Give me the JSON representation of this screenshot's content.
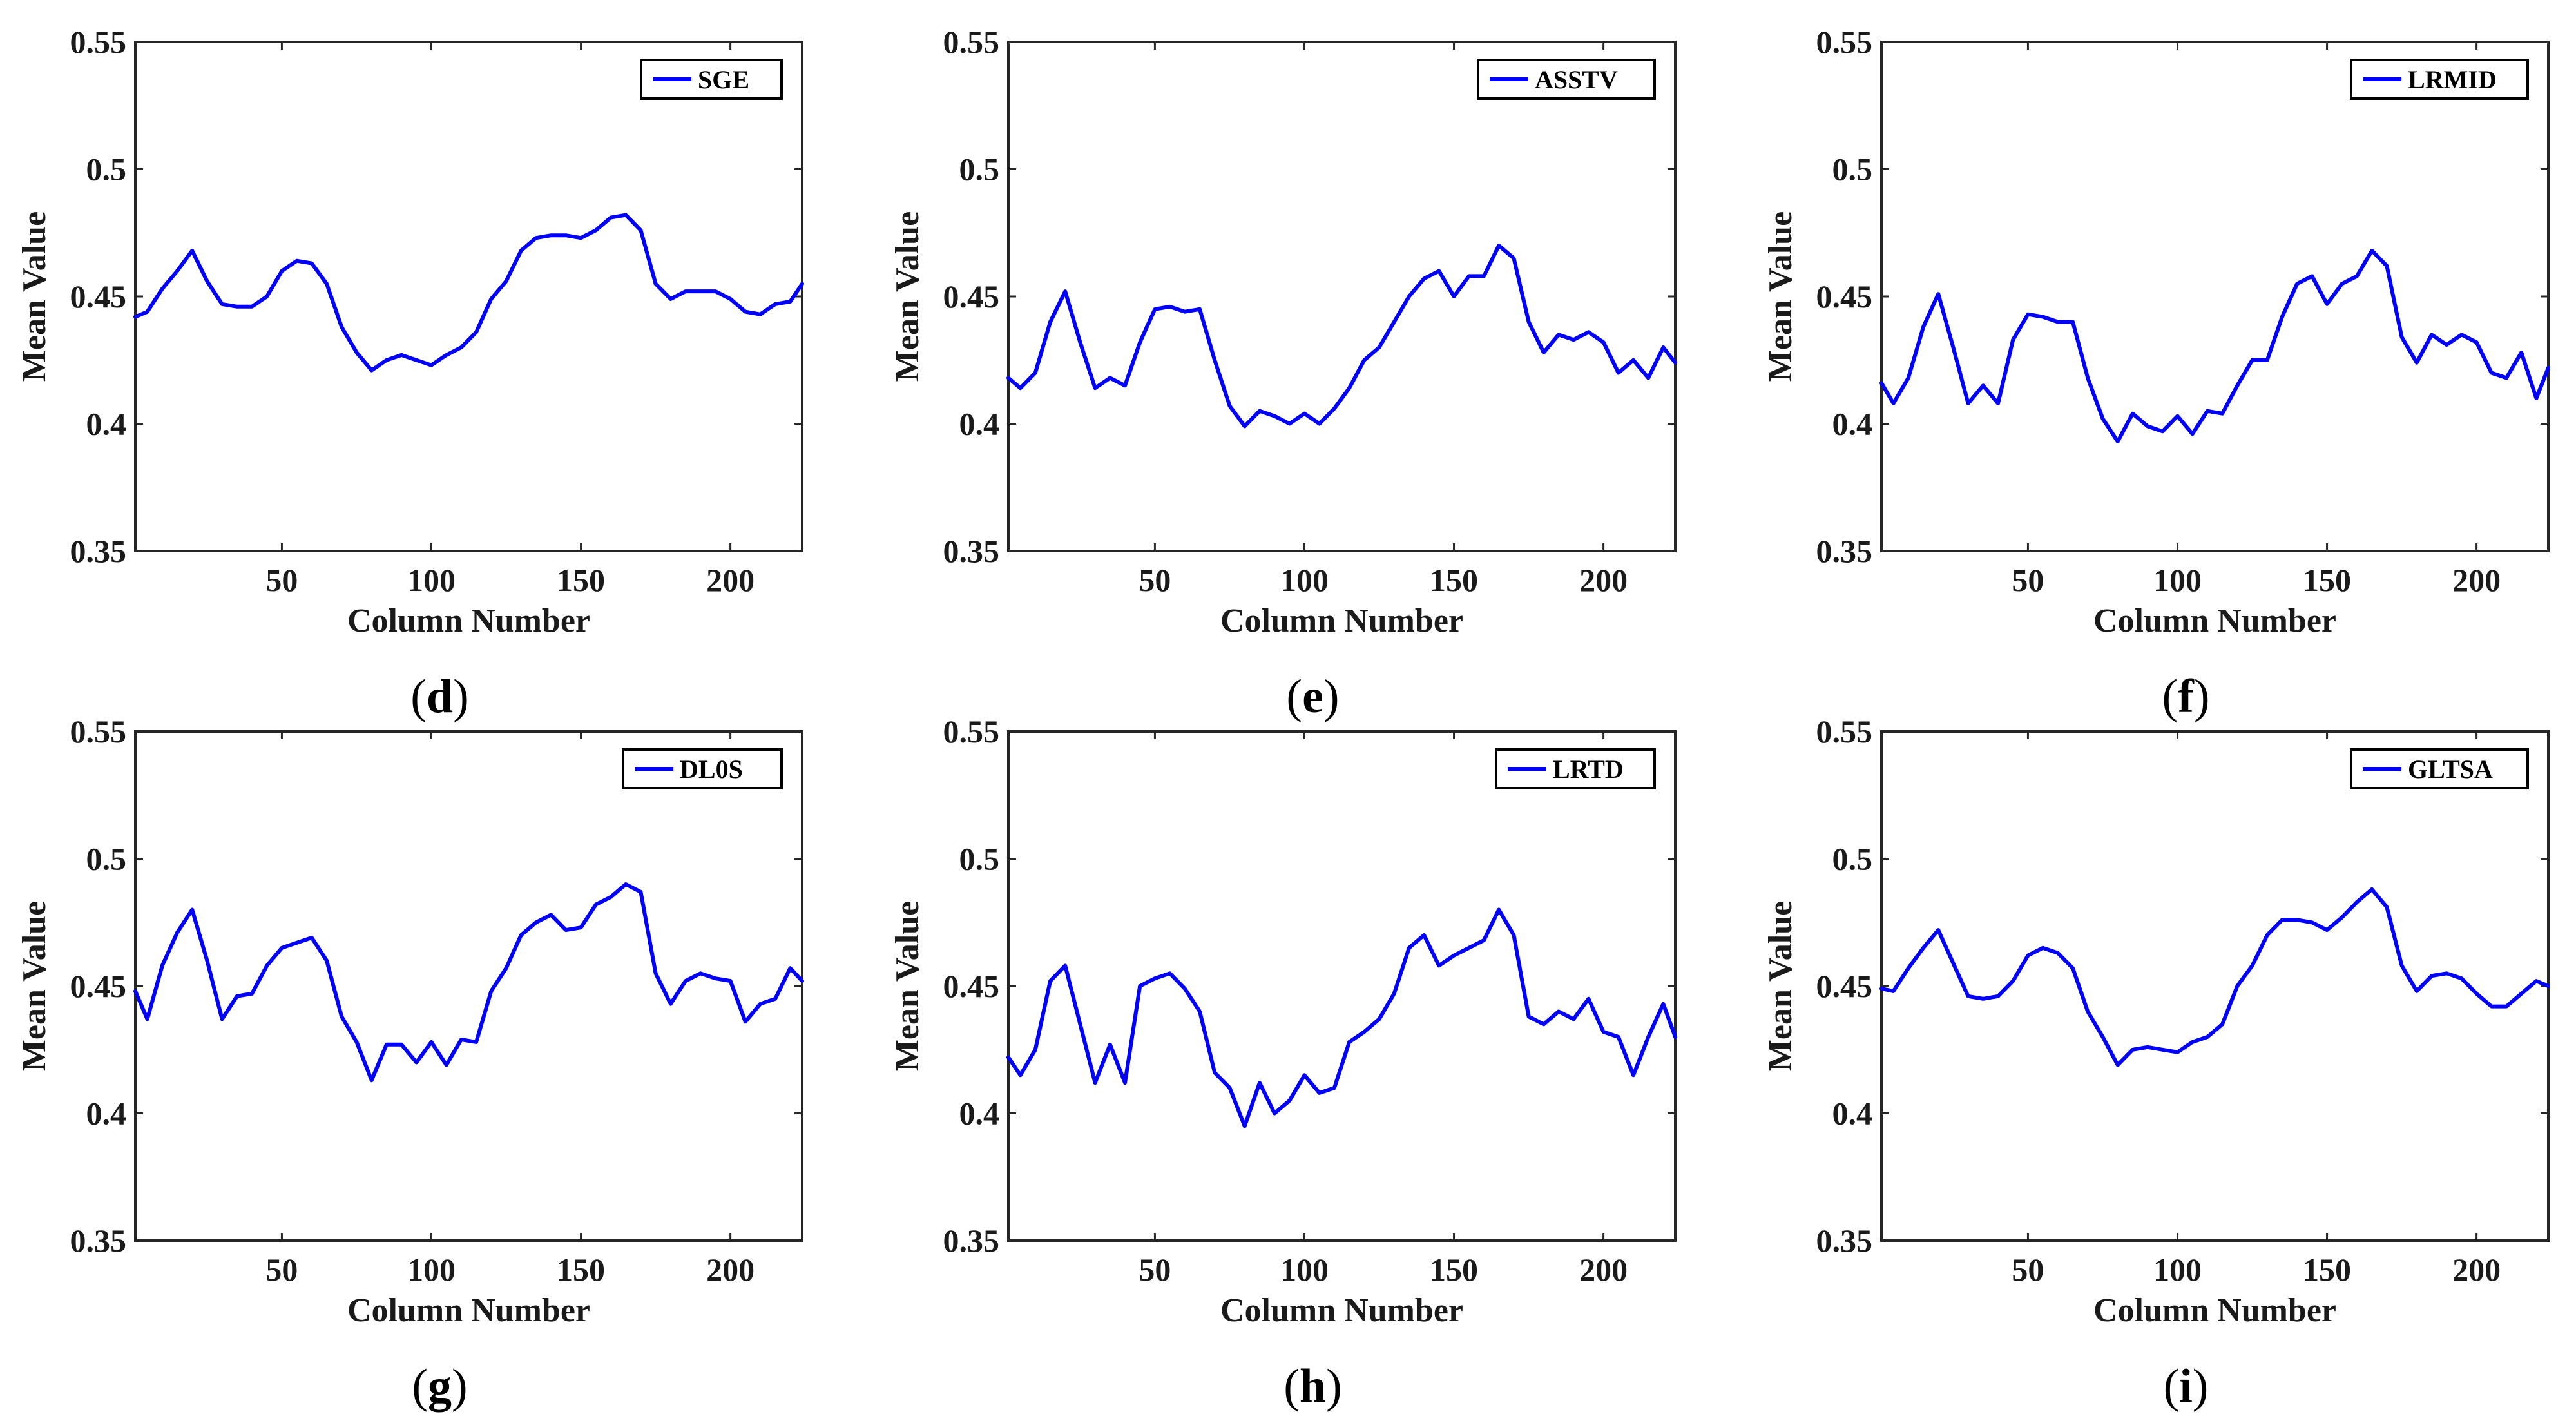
{
  "chart_data": [
    {
      "type": "line",
      "panel": "d",
      "legend": "SGE",
      "xlabel": "Column Number",
      "ylabel": "Mean Value",
      "xlim": [
        1,
        224
      ],
      "ylim": [
        0.35,
        0.55
      ],
      "xticks": [
        "50",
        "100",
        "150",
        "200"
      ],
      "yticks": [
        "0.35",
        "0.4",
        "0.45",
        "0.5",
        "0.55"
      ],
      "color": "#0000ff",
      "x": [
        1,
        5,
        10,
        15,
        20,
        25,
        30,
        35,
        40,
        45,
        50,
        55,
        60,
        65,
        70,
        75,
        80,
        85,
        90,
        95,
        100,
        105,
        110,
        115,
        120,
        125,
        130,
        135,
        140,
        145,
        150,
        155,
        160,
        165,
        170,
        175,
        180,
        185,
        190,
        195,
        200,
        205,
        210,
        215,
        220,
        224
      ],
      "values": [
        0.442,
        0.444,
        0.453,
        0.46,
        0.468,
        0.456,
        0.447,
        0.446,
        0.446,
        0.45,
        0.46,
        0.464,
        0.463,
        0.455,
        0.438,
        0.428,
        0.421,
        0.425,
        0.427,
        0.425,
        0.423,
        0.427,
        0.43,
        0.436,
        0.449,
        0.456,
        0.468,
        0.473,
        0.474,
        0.474,
        0.473,
        0.476,
        0.481,
        0.482,
        0.476,
        0.455,
        0.449,
        0.452,
        0.452,
        0.452,
        0.449,
        0.444,
        0.443,
        0.447,
        0.448,
        0.455
      ]
    },
    {
      "type": "line",
      "panel": "e",
      "legend": "ASSTV",
      "xlabel": "Column Number",
      "ylabel": "Mean Value",
      "xlim": [
        1,
        224
      ],
      "ylim": [
        0.35,
        0.55
      ],
      "xticks": [
        "50",
        "100",
        "150",
        "200"
      ],
      "yticks": [
        "0.35",
        "0.4",
        "0.45",
        "0.5",
        "0.55"
      ],
      "color": "#0000ff",
      "x": [
        1,
        5,
        10,
        15,
        20,
        25,
        30,
        35,
        40,
        45,
        50,
        55,
        60,
        65,
        70,
        75,
        80,
        85,
        90,
        95,
        100,
        105,
        110,
        115,
        120,
        125,
        130,
        135,
        140,
        145,
        150,
        155,
        160,
        165,
        170,
        175,
        180,
        185,
        190,
        195,
        200,
        205,
        210,
        215,
        220,
        224
      ],
      "values": [
        0.418,
        0.414,
        0.42,
        0.44,
        0.452,
        0.432,
        0.414,
        0.418,
        0.415,
        0.432,
        0.445,
        0.446,
        0.444,
        0.445,
        0.425,
        0.407,
        0.399,
        0.405,
        0.403,
        0.4,
        0.404,
        0.4,
        0.406,
        0.414,
        0.425,
        0.43,
        0.44,
        0.45,
        0.457,
        0.46,
        0.45,
        0.458,
        0.458,
        0.47,
        0.465,
        0.44,
        0.428,
        0.435,
        0.433,
        0.436,
        0.432,
        0.42,
        0.425,
        0.418,
        0.43,
        0.424
      ]
    },
    {
      "type": "line",
      "panel": "f",
      "legend": "LRMID",
      "xlabel": "Column Number",
      "ylabel": "Mean Value",
      "xlim": [
        1,
        224
      ],
      "ylim": [
        0.35,
        0.55
      ],
      "xticks": [
        "50",
        "100",
        "150",
        "200"
      ],
      "yticks": [
        "0.35",
        "0.4",
        "0.45",
        "0.5",
        "0.55"
      ],
      "color": "#0000ff",
      "x": [
        1,
        5,
        10,
        15,
        20,
        25,
        30,
        35,
        40,
        45,
        50,
        55,
        60,
        65,
        70,
        75,
        80,
        85,
        90,
        95,
        100,
        105,
        110,
        115,
        120,
        125,
        130,
        135,
        140,
        145,
        150,
        155,
        160,
        165,
        170,
        175,
        180,
        185,
        190,
        195,
        200,
        205,
        210,
        215,
        220,
        224
      ],
      "values": [
        0.416,
        0.408,
        0.418,
        0.438,
        0.451,
        0.43,
        0.408,
        0.415,
        0.408,
        0.433,
        0.443,
        0.442,
        0.44,
        0.44,
        0.418,
        0.402,
        0.393,
        0.404,
        0.399,
        0.397,
        0.403,
        0.396,
        0.405,
        0.404,
        0.415,
        0.425,
        0.425,
        0.442,
        0.455,
        0.458,
        0.447,
        0.455,
        0.458,
        0.468,
        0.462,
        0.434,
        0.424,
        0.435,
        0.431,
        0.435,
        0.432,
        0.42,
        0.418,
        0.428,
        0.41,
        0.422
      ]
    },
    {
      "type": "line",
      "panel": "g",
      "legend": "DL0S",
      "xlabel": "Column Number",
      "ylabel": "Mean Value",
      "xlim": [
        1,
        224
      ],
      "ylim": [
        0.35,
        0.55
      ],
      "xticks": [
        "50",
        "100",
        "150",
        "200"
      ],
      "yticks": [
        "0.35",
        "0.4",
        "0.45",
        "0.5",
        "0.55"
      ],
      "color": "#0000ff",
      "x": [
        1,
        5,
        10,
        15,
        20,
        25,
        30,
        35,
        40,
        45,
        50,
        55,
        60,
        65,
        70,
        75,
        80,
        85,
        90,
        95,
        100,
        105,
        110,
        115,
        120,
        125,
        130,
        135,
        140,
        145,
        150,
        155,
        160,
        165,
        170,
        175,
        180,
        185,
        190,
        195,
        200,
        205,
        210,
        215,
        220,
        224
      ],
      "values": [
        0.448,
        0.437,
        0.458,
        0.471,
        0.48,
        0.46,
        0.437,
        0.446,
        0.447,
        0.458,
        0.465,
        0.467,
        0.469,
        0.46,
        0.438,
        0.428,
        0.413,
        0.427,
        0.427,
        0.42,
        0.428,
        0.419,
        0.429,
        0.428,
        0.448,
        0.457,
        0.47,
        0.475,
        0.478,
        0.472,
        0.473,
        0.482,
        0.485,
        0.49,
        0.487,
        0.455,
        0.443,
        0.452,
        0.455,
        0.453,
        0.452,
        0.436,
        0.443,
        0.445,
        0.457,
        0.452
      ]
    },
    {
      "type": "line",
      "panel": "h",
      "legend": "LRTD",
      "xlabel": "Column Number",
      "ylabel": "Mean Value",
      "xlim": [
        1,
        224
      ],
      "ylim": [
        0.35,
        0.55
      ],
      "xticks": [
        "50",
        "100",
        "150",
        "200"
      ],
      "yticks": [
        "0.35",
        "0.4",
        "0.45",
        "0.5",
        "0.55"
      ],
      "color": "#0000ff",
      "x": [
        1,
        5,
        10,
        15,
        20,
        25,
        30,
        35,
        40,
        45,
        50,
        55,
        60,
        65,
        70,
        75,
        80,
        85,
        90,
        95,
        100,
        105,
        110,
        115,
        120,
        125,
        130,
        135,
        140,
        145,
        150,
        155,
        160,
        165,
        170,
        175,
        180,
        185,
        190,
        195,
        200,
        205,
        210,
        215,
        220,
        224
      ],
      "values": [
        0.422,
        0.415,
        0.425,
        0.452,
        0.458,
        0.435,
        0.412,
        0.427,
        0.412,
        0.45,
        0.453,
        0.455,
        0.449,
        0.44,
        0.416,
        0.41,
        0.395,
        0.412,
        0.4,
        0.405,
        0.415,
        0.408,
        0.41,
        0.428,
        0.432,
        0.437,
        0.447,
        0.465,
        0.47,
        0.458,
        0.462,
        0.465,
        0.468,
        0.48,
        0.47,
        0.438,
        0.435,
        0.44,
        0.437,
        0.445,
        0.432,
        0.43,
        0.415,
        0.43,
        0.443,
        0.43
      ]
    },
    {
      "type": "line",
      "panel": "i",
      "legend": "GLTSA",
      "xlabel": "Column Number",
      "ylabel": "Mean Value",
      "xlim": [
        1,
        224
      ],
      "ylim": [
        0.35,
        0.55
      ],
      "xticks": [
        "50",
        "100",
        "150",
        "200"
      ],
      "yticks": [
        "0.35",
        "0.4",
        "0.45",
        "0.5",
        "0.55"
      ],
      "color": "#0000ff",
      "x": [
        1,
        5,
        10,
        15,
        20,
        25,
        30,
        35,
        40,
        45,
        50,
        55,
        60,
        65,
        70,
        75,
        80,
        85,
        90,
        95,
        100,
        105,
        110,
        115,
        120,
        125,
        130,
        135,
        140,
        145,
        150,
        155,
        160,
        165,
        170,
        175,
        180,
        185,
        190,
        195,
        200,
        205,
        210,
        215,
        220,
        224
      ],
      "values": [
        0.449,
        0.448,
        0.457,
        0.465,
        0.472,
        0.459,
        0.446,
        0.445,
        0.446,
        0.452,
        0.462,
        0.465,
        0.463,
        0.457,
        0.44,
        0.43,
        0.419,
        0.425,
        0.426,
        0.425,
        0.424,
        0.428,
        0.43,
        0.435,
        0.45,
        0.458,
        0.47,
        0.476,
        0.476,
        0.475,
        0.472,
        0.477,
        0.483,
        0.488,
        0.481,
        0.458,
        0.448,
        0.454,
        0.455,
        0.453,
        0.447,
        0.442,
        0.442,
        0.447,
        0.452,
        0.45
      ]
    }
  ]
}
